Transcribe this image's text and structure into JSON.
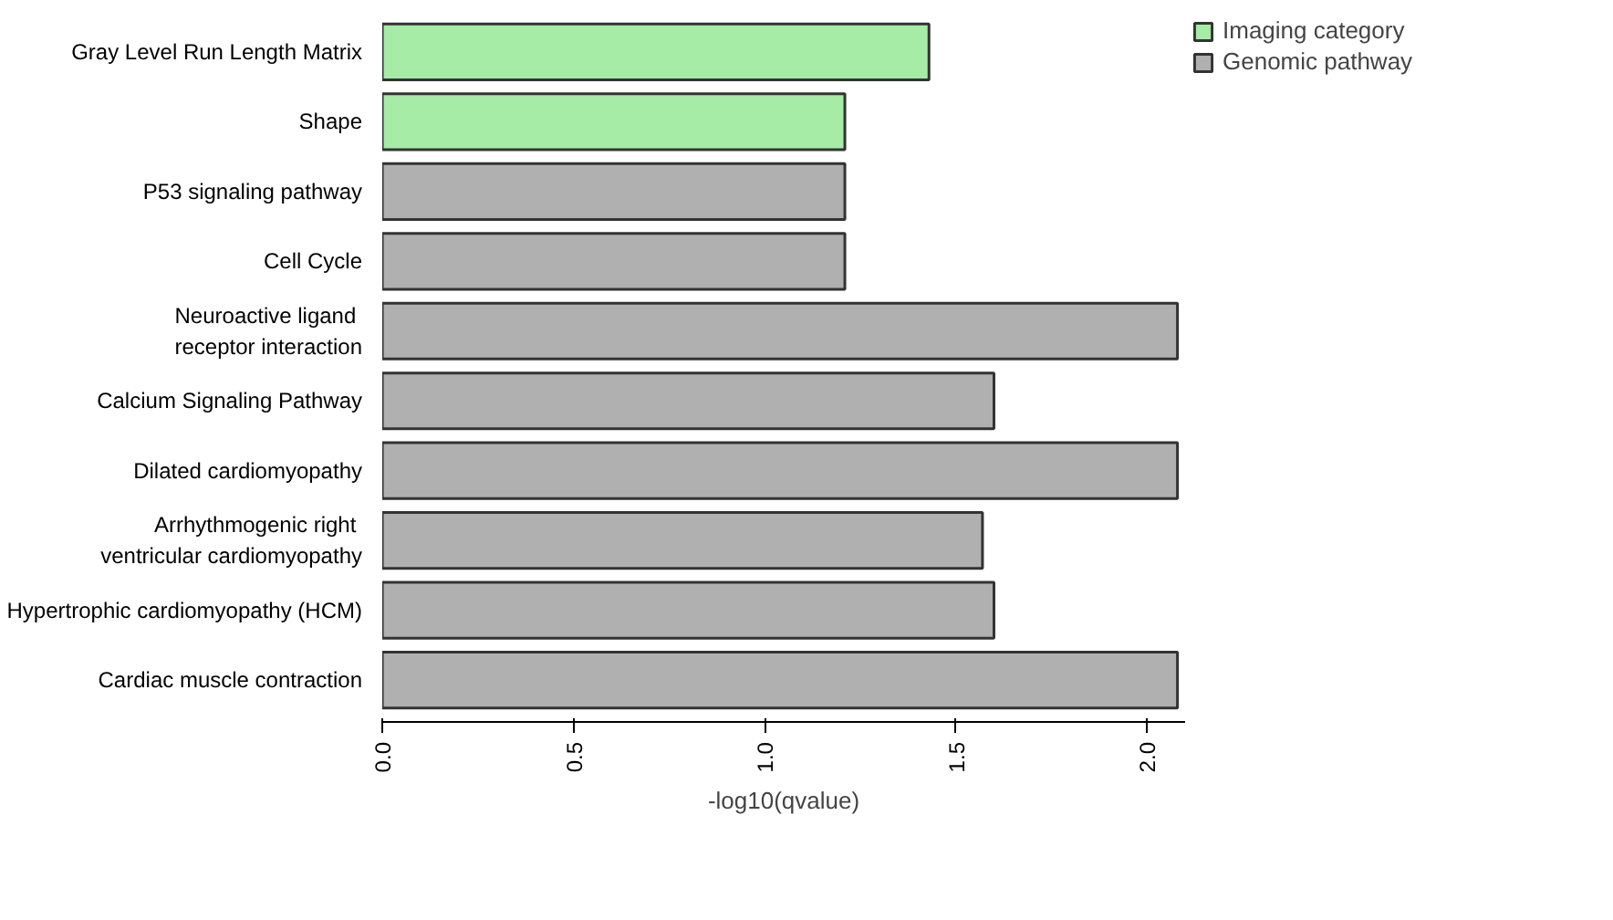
{
  "chart_data": {
    "type": "bar",
    "orientation": "horizontal",
    "xlabel": "-log10(qvalue)",
    "categories": [
      "Gray Level Run Length Matrix",
      "Shape",
      "P53 signaling pathway",
      "Cell Cycle",
      "Neuroactive ligand \nreceptor interaction",
      "Calcium Signaling Pathway",
      "Dilated cardiomyopathy",
      "Arrhythmogenic right \nventricular cardiomyopathy",
      "Hypertrophic cardiomyopathy (HCM)",
      "Cardiac muscle contraction"
    ],
    "series": [
      {
        "name": "Imaging category",
        "color": "#a6eba6",
        "values": [
          1.43,
          1.21,
          null,
          null,
          null,
          null,
          null,
          null,
          null,
          null
        ]
      },
      {
        "name": "Genomic pathway",
        "color": "#b0b0b0",
        "values": [
          null,
          null,
          1.21,
          1.21,
          2.08,
          1.6,
          2.08,
          1.57,
          1.6,
          2.08
        ]
      }
    ],
    "xlim": [
      0,
      2.1
    ],
    "xticks": [
      {
        "value": 0,
        "label": "0.0"
      },
      {
        "value": 0.5,
        "label": "0.5"
      },
      {
        "value": 1,
        "label": "1.0"
      },
      {
        "value": 1.5,
        "label": "1.5"
      },
      {
        "value": 2,
        "label": "2.0"
      }
    ],
    "grid": false,
    "legend": "top right"
  }
}
